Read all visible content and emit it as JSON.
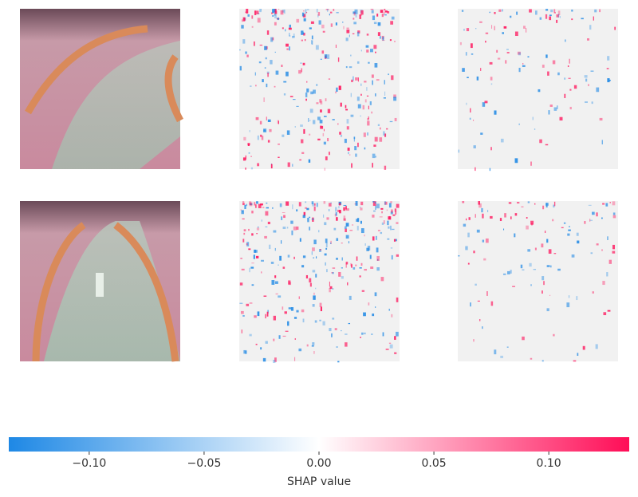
{
  "chart_data": {
    "type": "shap",
    "colorbar": {
      "label": "SHAP value",
      "xlim": [
        -0.135,
        0.135
      ],
      "xticks": [
        {
          "value": -0.1,
          "label": "−0.10"
        },
        {
          "value": -0.05,
          "label": "−0.05"
        },
        {
          "value": 0,
          "label": "0.00"
        },
        {
          "value": 0.05,
          "label": "0.05"
        },
        {
          "value": 0.1,
          "label": "0.10"
        }
      ],
      "colors": [
        "#1e88e5",
        "#ffffff",
        "#ff0d57"
      ]
    }
  }
}
